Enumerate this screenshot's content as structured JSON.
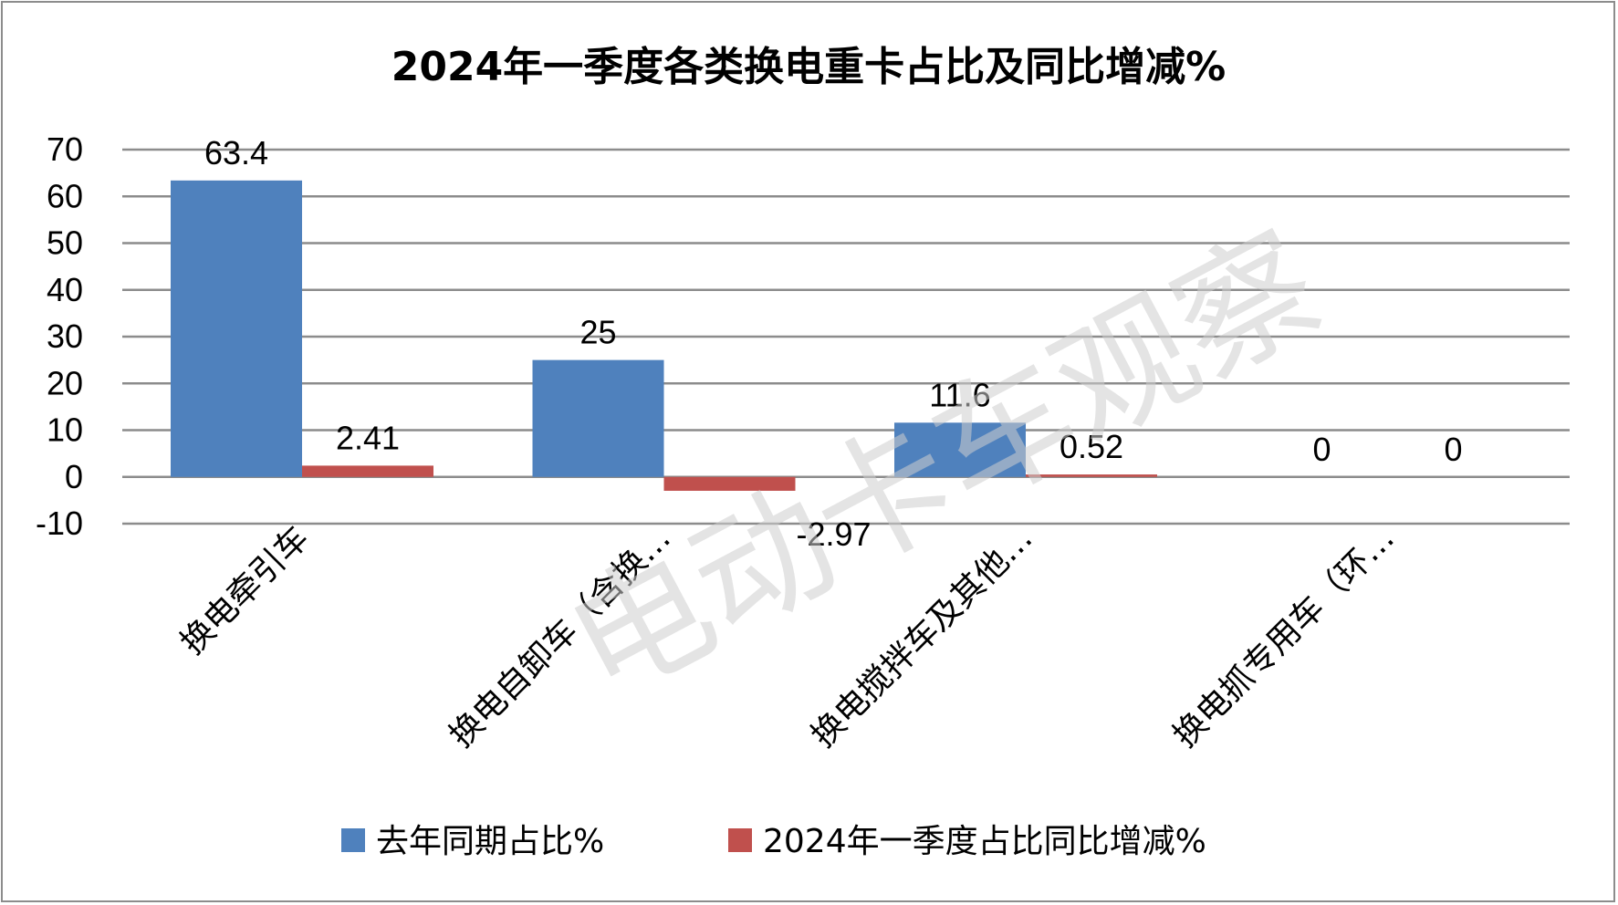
{
  "chart_data": {
    "type": "bar",
    "title": "2024年一季度各类换电重卡占比及同比增减%",
    "categories": [
      "换电牵引车",
      "换电自卸车（含换…",
      "换电搅拌车及其他…",
      "换电抓专用车（环…"
    ],
    "series": [
      {
        "name": "去年同期占比%",
        "values": [
          63.4,
          25,
          11.6,
          0
        ],
        "labels": [
          "63.4",
          "25",
          "11.6",
          "0"
        ],
        "color": "#4f81bd"
      },
      {
        "name": "2024年一季度占比同比增减%",
        "values": [
          2.41,
          -2.97,
          0.52,
          0
        ],
        "labels": [
          "2.41",
          "-2.97",
          "0.52",
          "0"
        ],
        "color": "#c0504d"
      }
    ],
    "ylim": [
      -10,
      70
    ],
    "yticks": [
      "70",
      "60",
      "50",
      "40",
      "30",
      "20",
      "10",
      "0",
      "-10"
    ],
    "grid": true,
    "legend_position": "bottom"
  },
  "watermark": "电动卡车观察"
}
